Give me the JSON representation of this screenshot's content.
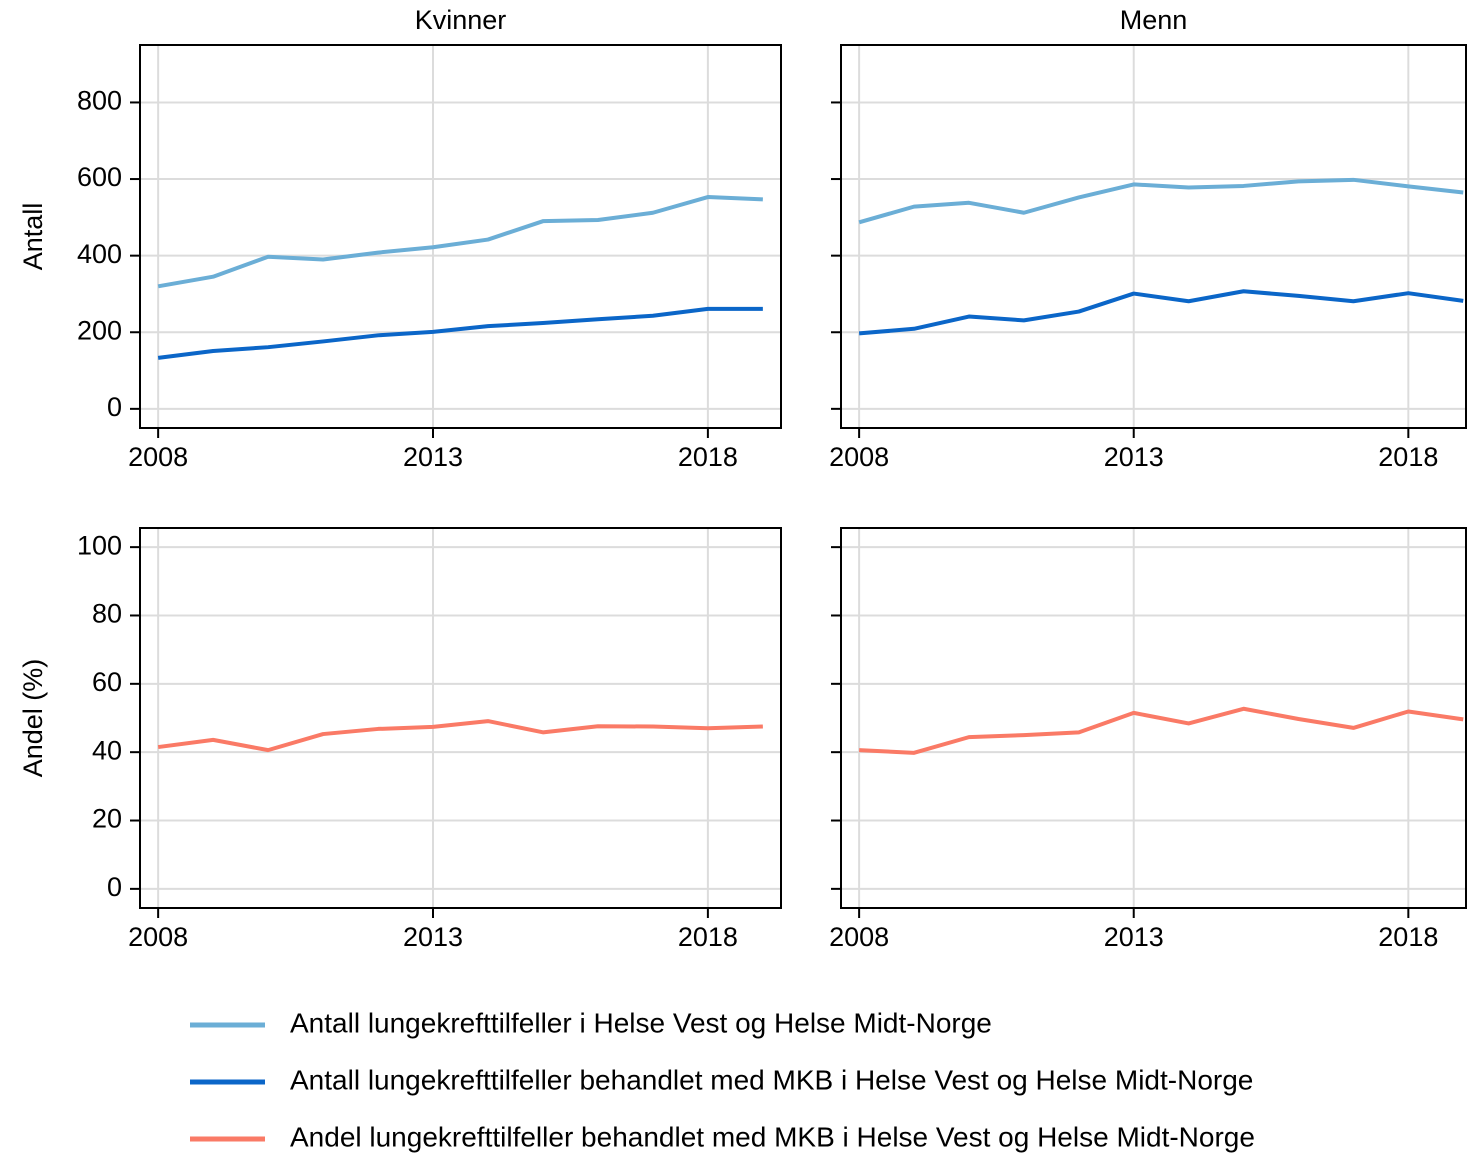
{
  "chart_data": [
    {
      "type": "line",
      "title": "Kvinner",
      "ylabel": "Antall",
      "x": [
        2008,
        2009,
        2010,
        2011,
        2012,
        2013,
        2014,
        2015,
        2016,
        2017,
        2018,
        2019
      ],
      "xlim": [
        2007.67,
        2019.33
      ],
      "xticks": [
        2008,
        2013,
        2018
      ],
      "ylim": [
        -50,
        950
      ],
      "yticks": [
        0,
        200,
        400,
        600,
        800
      ],
      "grid": true,
      "series": [
        {
          "name": "Antall lungekrefttilfeller i Helse Vest og Helse Midt-Norge",
          "color": "#6baed6",
          "values": [
            320,
            345,
            397,
            390,
            408,
            422,
            442,
            490,
            493,
            512,
            553,
            547
          ]
        },
        {
          "name": "Antall lungekrefttilfeller behandlet med MKB i Helse Vest og Helse Midt-Norge",
          "color": "#0b66c8",
          "values": [
            133,
            151,
            161,
            176,
            192,
            201,
            216,
            224,
            234,
            243,
            261,
            261
          ]
        }
      ]
    },
    {
      "type": "line",
      "title": "Menn",
      "x": [
        2008,
        2009,
        2010,
        2011,
        2012,
        2013,
        2014,
        2015,
        2016,
        2017,
        2018,
        2019
      ],
      "xlim": [
        2007.67,
        2019.05
      ],
      "xticks": [
        2008,
        2013,
        2018
      ],
      "ylim": [
        -50,
        950
      ],
      "grid": true,
      "series": [
        {
          "name": "Antall lungekrefttilfeller i Helse Vest og Helse Midt-Norge",
          "color": "#6baed6",
          "values": [
            487,
            528,
            538,
            512,
            552,
            586,
            578,
            582,
            594,
            598,
            581,
            565
          ]
        },
        {
          "name": "Antall lungekrefttilfeller behandlet med MKB i Helse Vest og Helse Midt-Norge",
          "color": "#0b66c8",
          "values": [
            197,
            209,
            241,
            231,
            254,
            301,
            281,
            307,
            295,
            281,
            302,
            282
          ]
        }
      ]
    },
    {
      "type": "line",
      "ylabel": "Andel (%)",
      "x": [
        2008,
        2009,
        2010,
        2011,
        2012,
        2013,
        2014,
        2015,
        2016,
        2017,
        2018,
        2019
      ],
      "xlim": [
        2007.67,
        2019.33
      ],
      "xticks": [
        2008,
        2013,
        2018
      ],
      "ylim": [
        -5.6,
        105.6
      ],
      "yticks": [
        0,
        20,
        40,
        60,
        80,
        100
      ],
      "grid": true,
      "series": [
        {
          "name": "Andel lungekrefttilfeller behandlet med MKB i Helse Vest og Helse Midt-Norge",
          "color": "#fa7a66",
          "values": [
            41.5,
            43.6,
            40.6,
            45.3,
            46.8,
            47.4,
            49.1,
            45.8,
            47.6,
            47.5,
            47.0,
            47.5
          ]
        }
      ]
    },
    {
      "type": "line",
      "x": [
        2008,
        2009,
        2010,
        2011,
        2012,
        2013,
        2014,
        2015,
        2016,
        2017,
        2018,
        2019
      ],
      "xlim": [
        2007.67,
        2019.05
      ],
      "xticks": [
        2008,
        2013,
        2018
      ],
      "ylim": [
        -5.6,
        105.6
      ],
      "grid": true,
      "series": [
        {
          "name": "Andel lungekrefttilfeller behandlet med MKB i Helse Vest og Helse Midt-Norge",
          "color": "#fa7a66",
          "values": [
            40.6,
            39.8,
            44.4,
            45.0,
            45.8,
            51.5,
            48.4,
            52.7,
            49.7,
            47.1,
            51.9,
            49.6
          ]
        }
      ]
    }
  ]
}
